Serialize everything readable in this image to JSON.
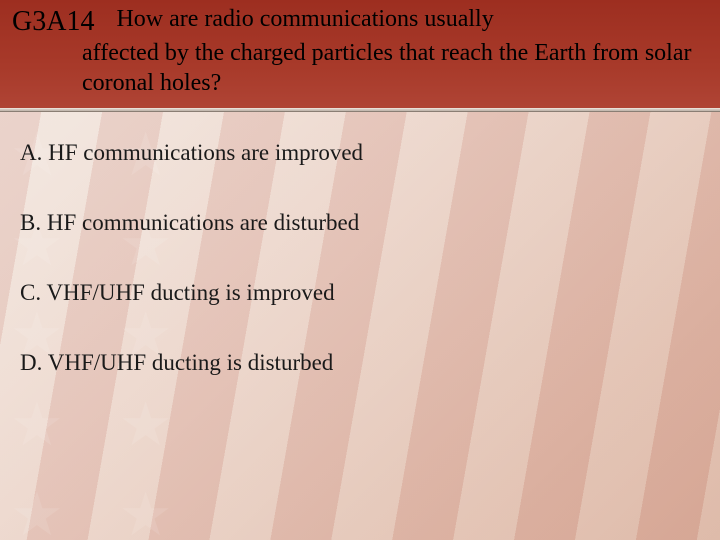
{
  "header": {
    "code": "G3A14",
    "question_line1": "How are radio communications usually",
    "question_rest": "affected by the charged particles that reach the Earth from solar coronal holes?",
    "band_color": "#a83a2a",
    "text_color": "#000000"
  },
  "answers": [
    {
      "letter": "A.",
      "text": "HF communications are improved"
    },
    {
      "letter": "B.",
      "text": "HF communications are disturbed"
    },
    {
      "letter": "C.",
      "text": "VHF/UHF ducting is improved"
    },
    {
      "letter": "D.",
      "text": "VHF/UHF ducting is disturbed"
    }
  ],
  "style": {
    "slide_width": 720,
    "slide_height": 540,
    "body_font": "Times New Roman",
    "code_fontsize": 28,
    "question_fontsize": 24,
    "answer_fontsize": 23,
    "answer_spacing": 44,
    "background_gradient": [
      "#f5ebe5",
      "#dcb5a3"
    ],
    "stripe_colors": [
      "#a83a2a",
      "#efe5dc"
    ],
    "stripe_opacity": 0.12
  }
}
